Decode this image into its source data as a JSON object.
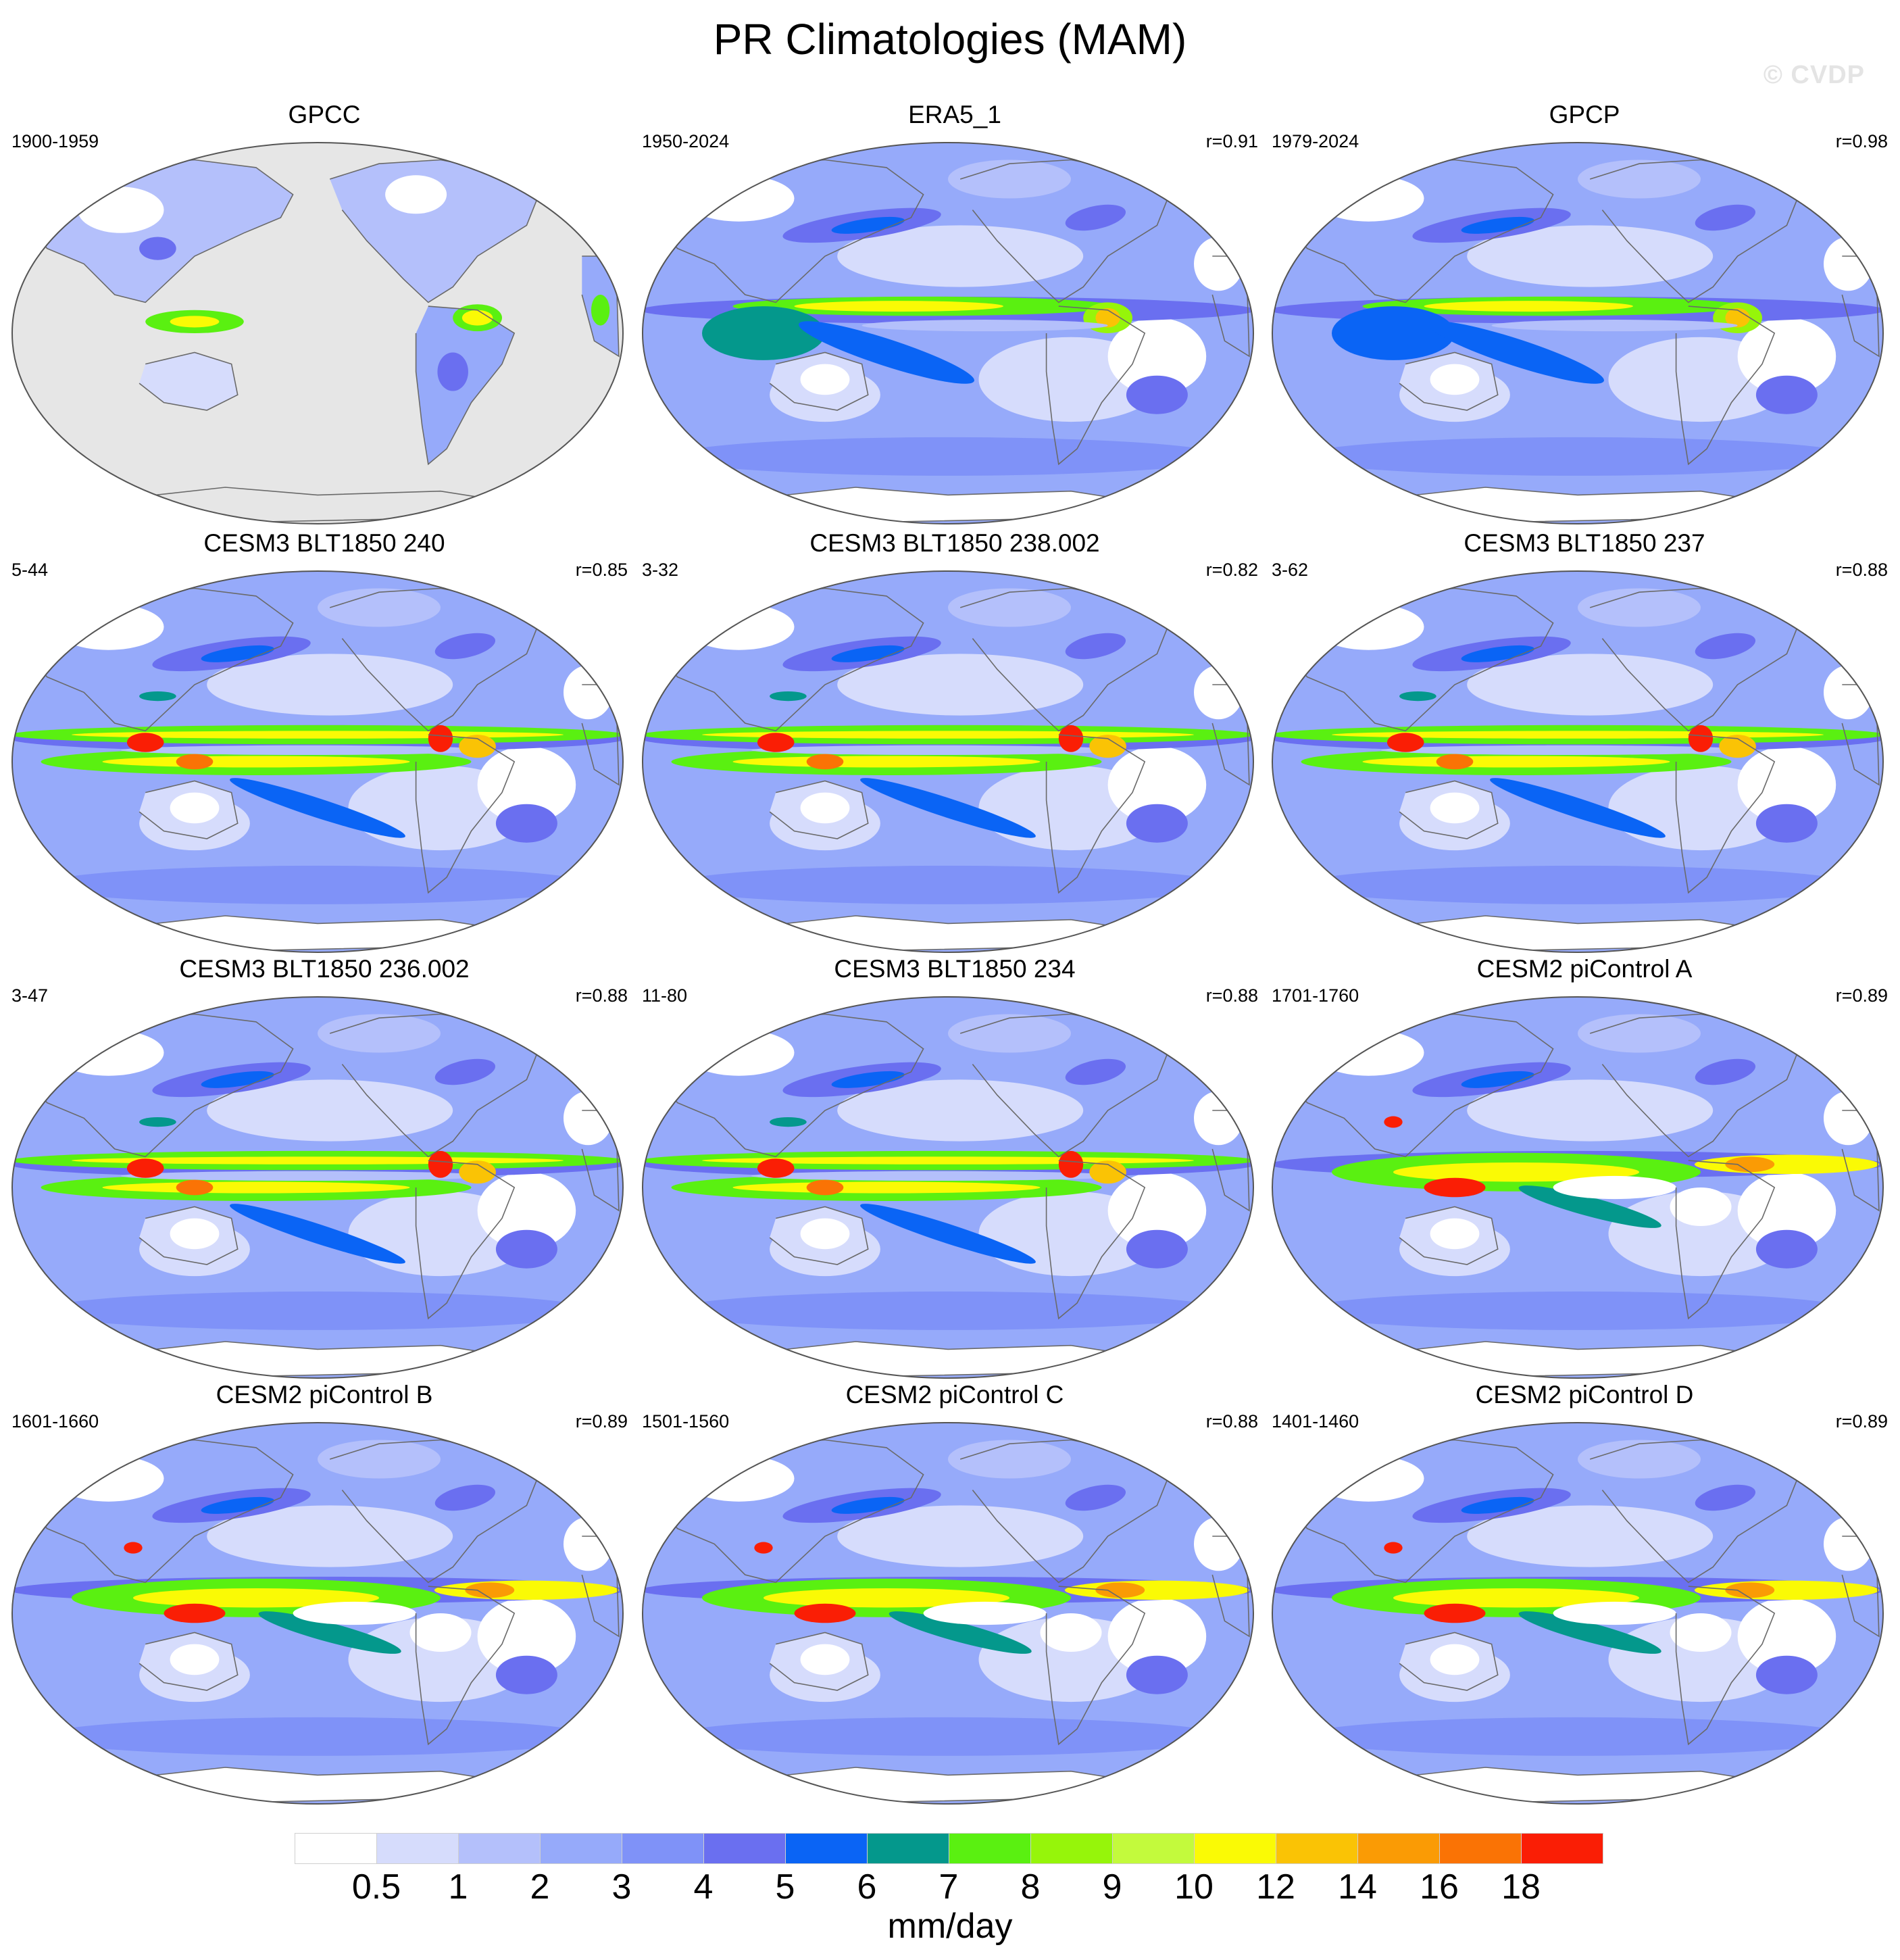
{
  "title": "PR Climatologies (MAM)",
  "watermark": "© CVDP",
  "panels": [
    {
      "title": "GPCC",
      "years": "1900-1959",
      "corr": "",
      "kind": "obs"
    },
    {
      "title": "ERA5_1",
      "years": "1950-2024",
      "corr": "r=0.91",
      "kind": "era5"
    },
    {
      "title": "GPCP",
      "years": "1979-2024",
      "corr": "r=0.98",
      "kind": "gpcp"
    },
    {
      "title": "CESM3 BLT1850 240",
      "years": "5-44",
      "corr": "r=0.85",
      "kind": "cesm3"
    },
    {
      "title": "CESM3 BLT1850 238.002",
      "years": "3-32",
      "corr": "r=0.82",
      "kind": "cesm3"
    },
    {
      "title": "CESM3 BLT1850 237",
      "years": "3-62",
      "corr": "r=0.88",
      "kind": "cesm3"
    },
    {
      "title": "CESM3 BLT1850 236.002",
      "years": "3-47",
      "corr": "r=0.88",
      "kind": "cesm3"
    },
    {
      "title": "CESM3 BLT1850 234",
      "years": "11-80",
      "corr": "r=0.88",
      "kind": "cesm3"
    },
    {
      "title": "CESM2 piControl A",
      "years": "1701-1760",
      "corr": "r=0.89",
      "kind": "cesm2"
    },
    {
      "title": "CESM2 piControl B",
      "years": "1601-1660",
      "corr": "r=0.89",
      "kind": "cesm2"
    },
    {
      "title": "CESM2 piControl C",
      "years": "1501-1560",
      "corr": "r=0.88",
      "kind": "cesm2"
    },
    {
      "title": "CESM2 piControl D",
      "years": "1401-1460",
      "corr": "r=0.89",
      "kind": "cesm2"
    }
  ],
  "colorbar": {
    "unit": "mm/day",
    "ticks": [
      "0.5",
      "1",
      "2",
      "3",
      "4",
      "5",
      "6",
      "7",
      "8",
      "9",
      "10",
      "12",
      "14",
      "16",
      "18"
    ],
    "colors": [
      "#ffffff",
      "#d6dcfc",
      "#b4c0fb",
      "#96aafa",
      "#7f92f8",
      "#6a6ff0",
      "#0a64f5",
      "#04988c",
      "#5af011",
      "#96f50a",
      "#c3fa3c",
      "#fafa05",
      "#fac305",
      "#fa9b05",
      "#fa7305",
      "#fa1e05"
    ]
  }
}
